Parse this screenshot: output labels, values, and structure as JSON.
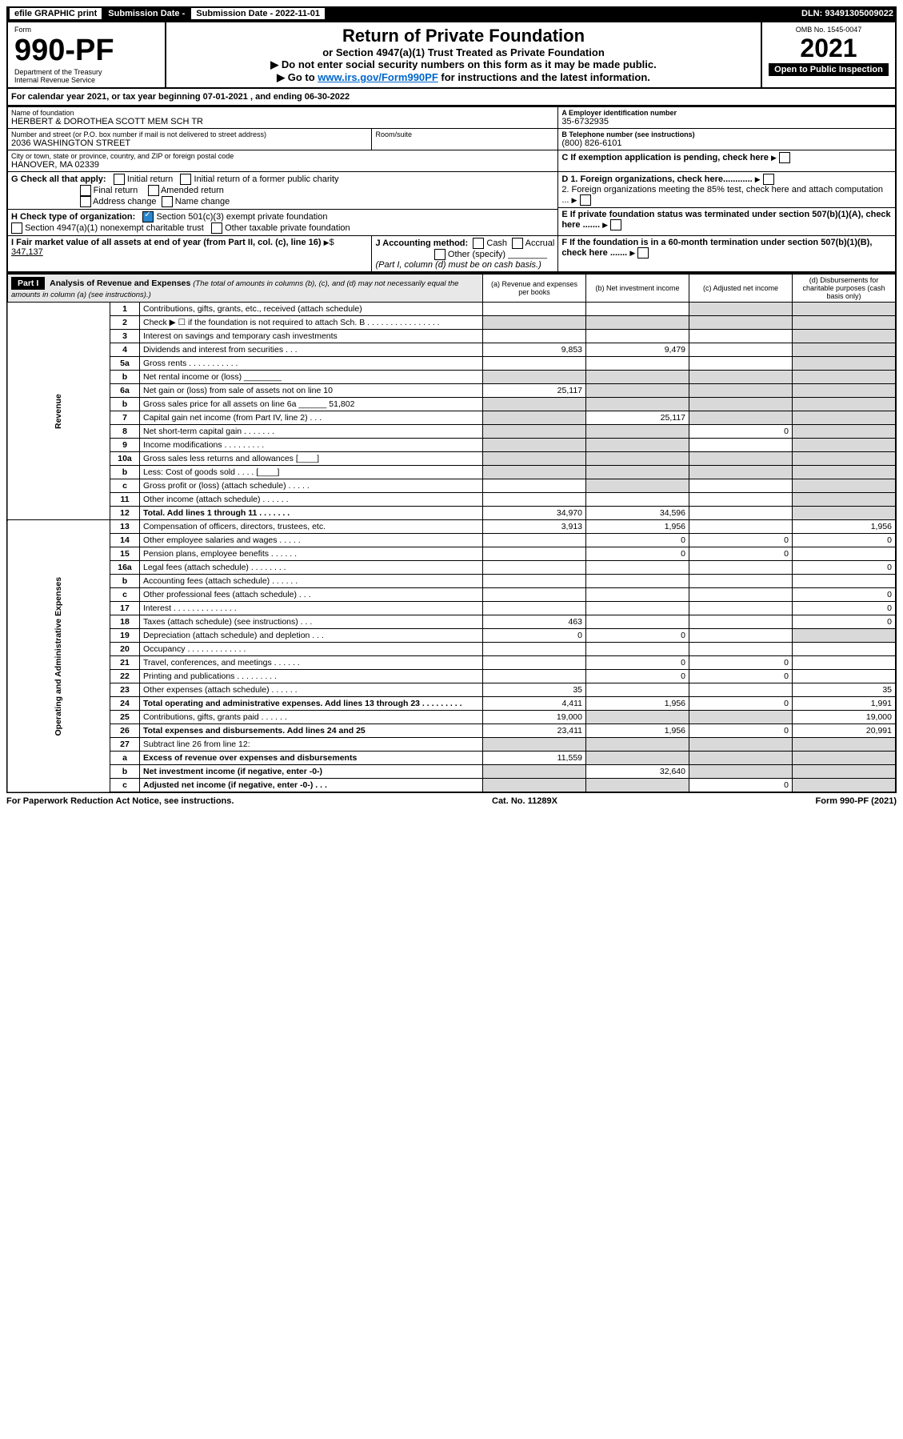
{
  "topbar": {
    "efile": "efile GRAPHIC print",
    "submission_label": "Submission Date - 2022-11-01",
    "dln": "DLN: 93491305009022"
  },
  "header": {
    "form_label": "Form",
    "form_no": "990-PF",
    "dept": "Department of the Treasury",
    "irs": "Internal Revenue Service",
    "title": "Return of Private Foundation",
    "subtitle": "or Section 4947(a)(1) Trust Treated as Private Foundation",
    "note1": "▶ Do not enter social security numbers on this form as it may be made public.",
    "note2_pre": "▶ Go to ",
    "note2_link": "www.irs.gov/Form990PF",
    "note2_post": " for instructions and the latest information.",
    "omb": "OMB No. 1545-0047",
    "year": "2021",
    "open": "Open to Public Inspection"
  },
  "calyear": "For calendar year 2021, or tax year beginning 07-01-2021          , and ending 06-30-2022",
  "ident": {
    "name_label": "Name of foundation",
    "name": "HERBERT & DOROTHEA SCOTT MEM SCH TR",
    "addr_label": "Number and street (or P.O. box number if mail is not delivered to street address)",
    "addr": "2036 WASHINGTON STREET",
    "room_label": "Room/suite",
    "city_label": "City or town, state or province, country, and ZIP or foreign postal code",
    "city": "HANOVER, MA  02339",
    "a_label": "A Employer identification number",
    "a_val": "35-6732935",
    "b_label": "B Telephone number (see instructions)",
    "b_val": "(800) 826-6101",
    "c_label": "C If exemption application is pending, check here",
    "d1": "D 1. Foreign organizations, check here............",
    "d2": "2. Foreign organizations meeting the 85% test, check here and attach computation ...",
    "e_label": "E  If private foundation status was terminated under section 507(b)(1)(A), check here .......",
    "f_label": "F  If the foundation is in a 60-month termination under section 507(b)(1)(B), check here ......."
  },
  "g": {
    "label": "G Check all that apply:",
    "opts": [
      "Initial return",
      "Final return",
      "Address change",
      "Initial return of a former public charity",
      "Amended return",
      "Name change"
    ]
  },
  "h": {
    "label": "H Check type of organization:",
    "o1": "Section 501(c)(3) exempt private foundation",
    "o2": "Section 4947(a)(1) nonexempt charitable trust",
    "o3": "Other taxable private foundation"
  },
  "i": {
    "label": "I Fair market value of all assets at end of year (from Part II, col. (c), line 16)",
    "val": "347,137"
  },
  "j": {
    "label": "J Accounting method:",
    "o1": "Cash",
    "o2": "Accrual",
    "o3": "Other (specify)",
    "note": "(Part I, column (d) must be on cash basis.)"
  },
  "part1": {
    "label": "Part I",
    "title": "Analysis of Revenue and Expenses",
    "title_note": "(The total of amounts in columns (b), (c), and (d) may not necessarily equal the amounts in column (a) (see instructions).)",
    "cols": {
      "a": "(a)   Revenue and expenses per books",
      "b": "(b)   Net investment income",
      "c": "(c)   Adjusted net income",
      "d": "(d)   Disbursements for charitable purposes (cash basis only)"
    }
  },
  "sections": {
    "revenue": "Revenue",
    "opadmin": "Operating and Administrative Expenses"
  },
  "rows": [
    {
      "n": "1",
      "desc": "Contributions, gifts, grants, etc., received (attach schedule)",
      "a": "",
      "b": "",
      "c": "",
      "d": "",
      "dGrey": true,
      "cGrey": true
    },
    {
      "n": "2",
      "desc": "Check ▶ ☐ if the foundation is not required to attach Sch. B     .  .  .  .  .  .  .  .  .  .  .  .  .  .  .  .",
      "a": "",
      "b": "",
      "c": "",
      "d": "",
      "aGrey": true,
      "bGrey": true,
      "cGrey": true,
      "dGrey": true
    },
    {
      "n": "3",
      "desc": "Interest on savings and temporary cash investments",
      "a": "",
      "b": "",
      "c": "",
      "d": "",
      "dGrey": true
    },
    {
      "n": "4",
      "desc": "Dividends and interest from securities    .   .   .",
      "a": "9,853",
      "b": "9,479",
      "c": "",
      "d": "",
      "dGrey": true
    },
    {
      "n": "5a",
      "desc": "Gross rents    .   .   .   .   .   .   .   .   .   .   .",
      "a": "",
      "b": "",
      "c": "",
      "d": "",
      "dGrey": true
    },
    {
      "n": "b",
      "desc": "Net rental income or (loss)  ________",
      "a": "",
      "b": "",
      "c": "",
      "d": "",
      "aGrey": true,
      "bGrey": true,
      "cGrey": true,
      "dGrey": true
    },
    {
      "n": "6a",
      "desc": "Net gain or (loss) from sale of assets not on line 10",
      "a": "25,117",
      "b": "",
      "c": "",
      "d": "",
      "bGrey": true,
      "cGrey": true,
      "dGrey": true
    },
    {
      "n": "b",
      "desc": "Gross sales price for all assets on line 6a ______  51,802",
      "a": "",
      "b": "",
      "c": "",
      "d": "",
      "aGrey": true,
      "bGrey": true,
      "cGrey": true,
      "dGrey": true
    },
    {
      "n": "7",
      "desc": "Capital gain net income (from Part IV, line 2)   .   .   .",
      "a": "",
      "b": "25,117",
      "c": "",
      "d": "",
      "aGrey": true,
      "cGrey": true,
      "dGrey": true
    },
    {
      "n": "8",
      "desc": "Net short-term capital gain   .   .   .   .   .   .   .",
      "a": "",
      "b": "",
      "c": "0",
      "d": "",
      "aGrey": true,
      "bGrey": true,
      "dGrey": true
    },
    {
      "n": "9",
      "desc": "Income modifications .   .   .   .   .   .   .   .   .",
      "a": "",
      "b": "",
      "c": "",
      "d": "",
      "aGrey": true,
      "bGrey": true,
      "dGrey": true
    },
    {
      "n": "10a",
      "desc": "Gross sales less returns and allowances  [____]",
      "a": "",
      "b": "",
      "c": "",
      "d": "",
      "aGrey": true,
      "bGrey": true,
      "cGrey": true,
      "dGrey": true
    },
    {
      "n": "b",
      "desc": "Less: Cost of goods sold    .   .   .   .   [____]",
      "a": "",
      "b": "",
      "c": "",
      "d": "",
      "aGrey": true,
      "bGrey": true,
      "cGrey": true,
      "dGrey": true
    },
    {
      "n": "c",
      "desc": "Gross profit or (loss) (attach schedule)    .   .   .   .   .",
      "a": "",
      "b": "",
      "c": "",
      "d": "",
      "bGrey": true,
      "dGrey": true
    },
    {
      "n": "11",
      "desc": "Other income (attach schedule)    .   .   .   .   .   .",
      "a": "",
      "b": "",
      "c": "",
      "d": "",
      "dGrey": true
    },
    {
      "n": "12",
      "desc": "Total. Add lines 1 through 11   .   .   .   .   .   .   .",
      "bold": true,
      "a": "34,970",
      "b": "34,596",
      "c": "",
      "d": "",
      "dGrey": true
    },
    {
      "n": "13",
      "desc": "Compensation of officers, directors, trustees, etc.",
      "a": "3,913",
      "b": "1,956",
      "c": "",
      "d": "1,956"
    },
    {
      "n": "14",
      "desc": "Other employee salaries and wages    .   .   .   .   .",
      "a": "",
      "b": "0",
      "c": "0",
      "d": "0"
    },
    {
      "n": "15",
      "desc": "Pension plans, employee benefits  .   .   .   .   .   .",
      "a": "",
      "b": "0",
      "c": "0",
      "d": ""
    },
    {
      "n": "16a",
      "desc": "Legal fees (attach schedule) .   .   .   .   .   .   .   .",
      "a": "",
      "b": "",
      "c": "",
      "d": "0"
    },
    {
      "n": "b",
      "desc": "Accounting fees (attach schedule) .   .   .   .   .   .",
      "a": "",
      "b": "",
      "c": "",
      "d": ""
    },
    {
      "n": "c",
      "desc": "Other professional fees (attach schedule)    .   .   .",
      "a": "",
      "b": "",
      "c": "",
      "d": "0"
    },
    {
      "n": "17",
      "desc": "Interest .   .   .   .   .   .   .   .   .   .   .   .   .   .",
      "a": "",
      "b": "",
      "c": "",
      "d": "0"
    },
    {
      "n": "18",
      "desc": "Taxes (attach schedule) (see instructions)    .   .   .",
      "a": "463",
      "b": "",
      "c": "",
      "d": "0"
    },
    {
      "n": "19",
      "desc": "Depreciation (attach schedule) and depletion    .   .   .",
      "a": "0",
      "b": "0",
      "c": "",
      "d": "",
      "dGrey": true
    },
    {
      "n": "20",
      "desc": "Occupancy .   .   .   .   .   .   .   .   .   .   .   .   .",
      "a": "",
      "b": "",
      "c": "",
      "d": ""
    },
    {
      "n": "21",
      "desc": "Travel, conferences, and meetings .   .   .   .   .   .",
      "a": "",
      "b": "0",
      "c": "0",
      "d": ""
    },
    {
      "n": "22",
      "desc": "Printing and publications .   .   .   .   .   .   .   .   .",
      "a": "",
      "b": "0",
      "c": "0",
      "d": ""
    },
    {
      "n": "23",
      "desc": "Other expenses (attach schedule) .   .   .   .   .   .",
      "a": "35",
      "b": "",
      "c": "",
      "d": "35"
    },
    {
      "n": "24",
      "desc": "Total operating and administrative expenses. Add lines 13 through 23   .   .   .   .   .   .   .   .   .",
      "bold": true,
      "a": "4,411",
      "b": "1,956",
      "c": "0",
      "d": "1,991"
    },
    {
      "n": "25",
      "desc": "Contributions, gifts, grants paid    .   .   .   .   .   .",
      "a": "19,000",
      "b": "",
      "c": "",
      "d": "19,000",
      "bGrey": true,
      "cGrey": true
    },
    {
      "n": "26",
      "desc": "Total expenses and disbursements. Add lines 24 and 25",
      "bold": true,
      "a": "23,411",
      "b": "1,956",
      "c": "0",
      "d": "20,991"
    },
    {
      "n": "27",
      "desc": "Subtract line 26 from line 12:",
      "a": "",
      "b": "",
      "c": "",
      "d": "",
      "aGrey": true,
      "bGrey": true,
      "cGrey": true,
      "dGrey": true
    },
    {
      "n": "a",
      "desc": "Excess of revenue over expenses and disbursements",
      "bold": true,
      "a": "11,559",
      "b": "",
      "c": "",
      "d": "",
      "bGrey": true,
      "cGrey": true,
      "dGrey": true
    },
    {
      "n": "b",
      "desc": "Net investment income (if negative, enter -0-)",
      "bold": true,
      "a": "",
      "b": "32,640",
      "c": "",
      "d": "",
      "aGrey": true,
      "cGrey": true,
      "dGrey": true
    },
    {
      "n": "c",
      "desc": "Adjusted net income (if negative, enter -0-)    .   .   .",
      "bold": true,
      "a": "",
      "b": "",
      "c": "0",
      "d": "",
      "aGrey": true,
      "bGrey": true,
      "dGrey": true
    }
  ],
  "footer": {
    "left": "For Paperwork Reduction Act Notice, see instructions.",
    "mid": "Cat. No. 11289X",
    "right": "Form 990-PF (2021)"
  }
}
